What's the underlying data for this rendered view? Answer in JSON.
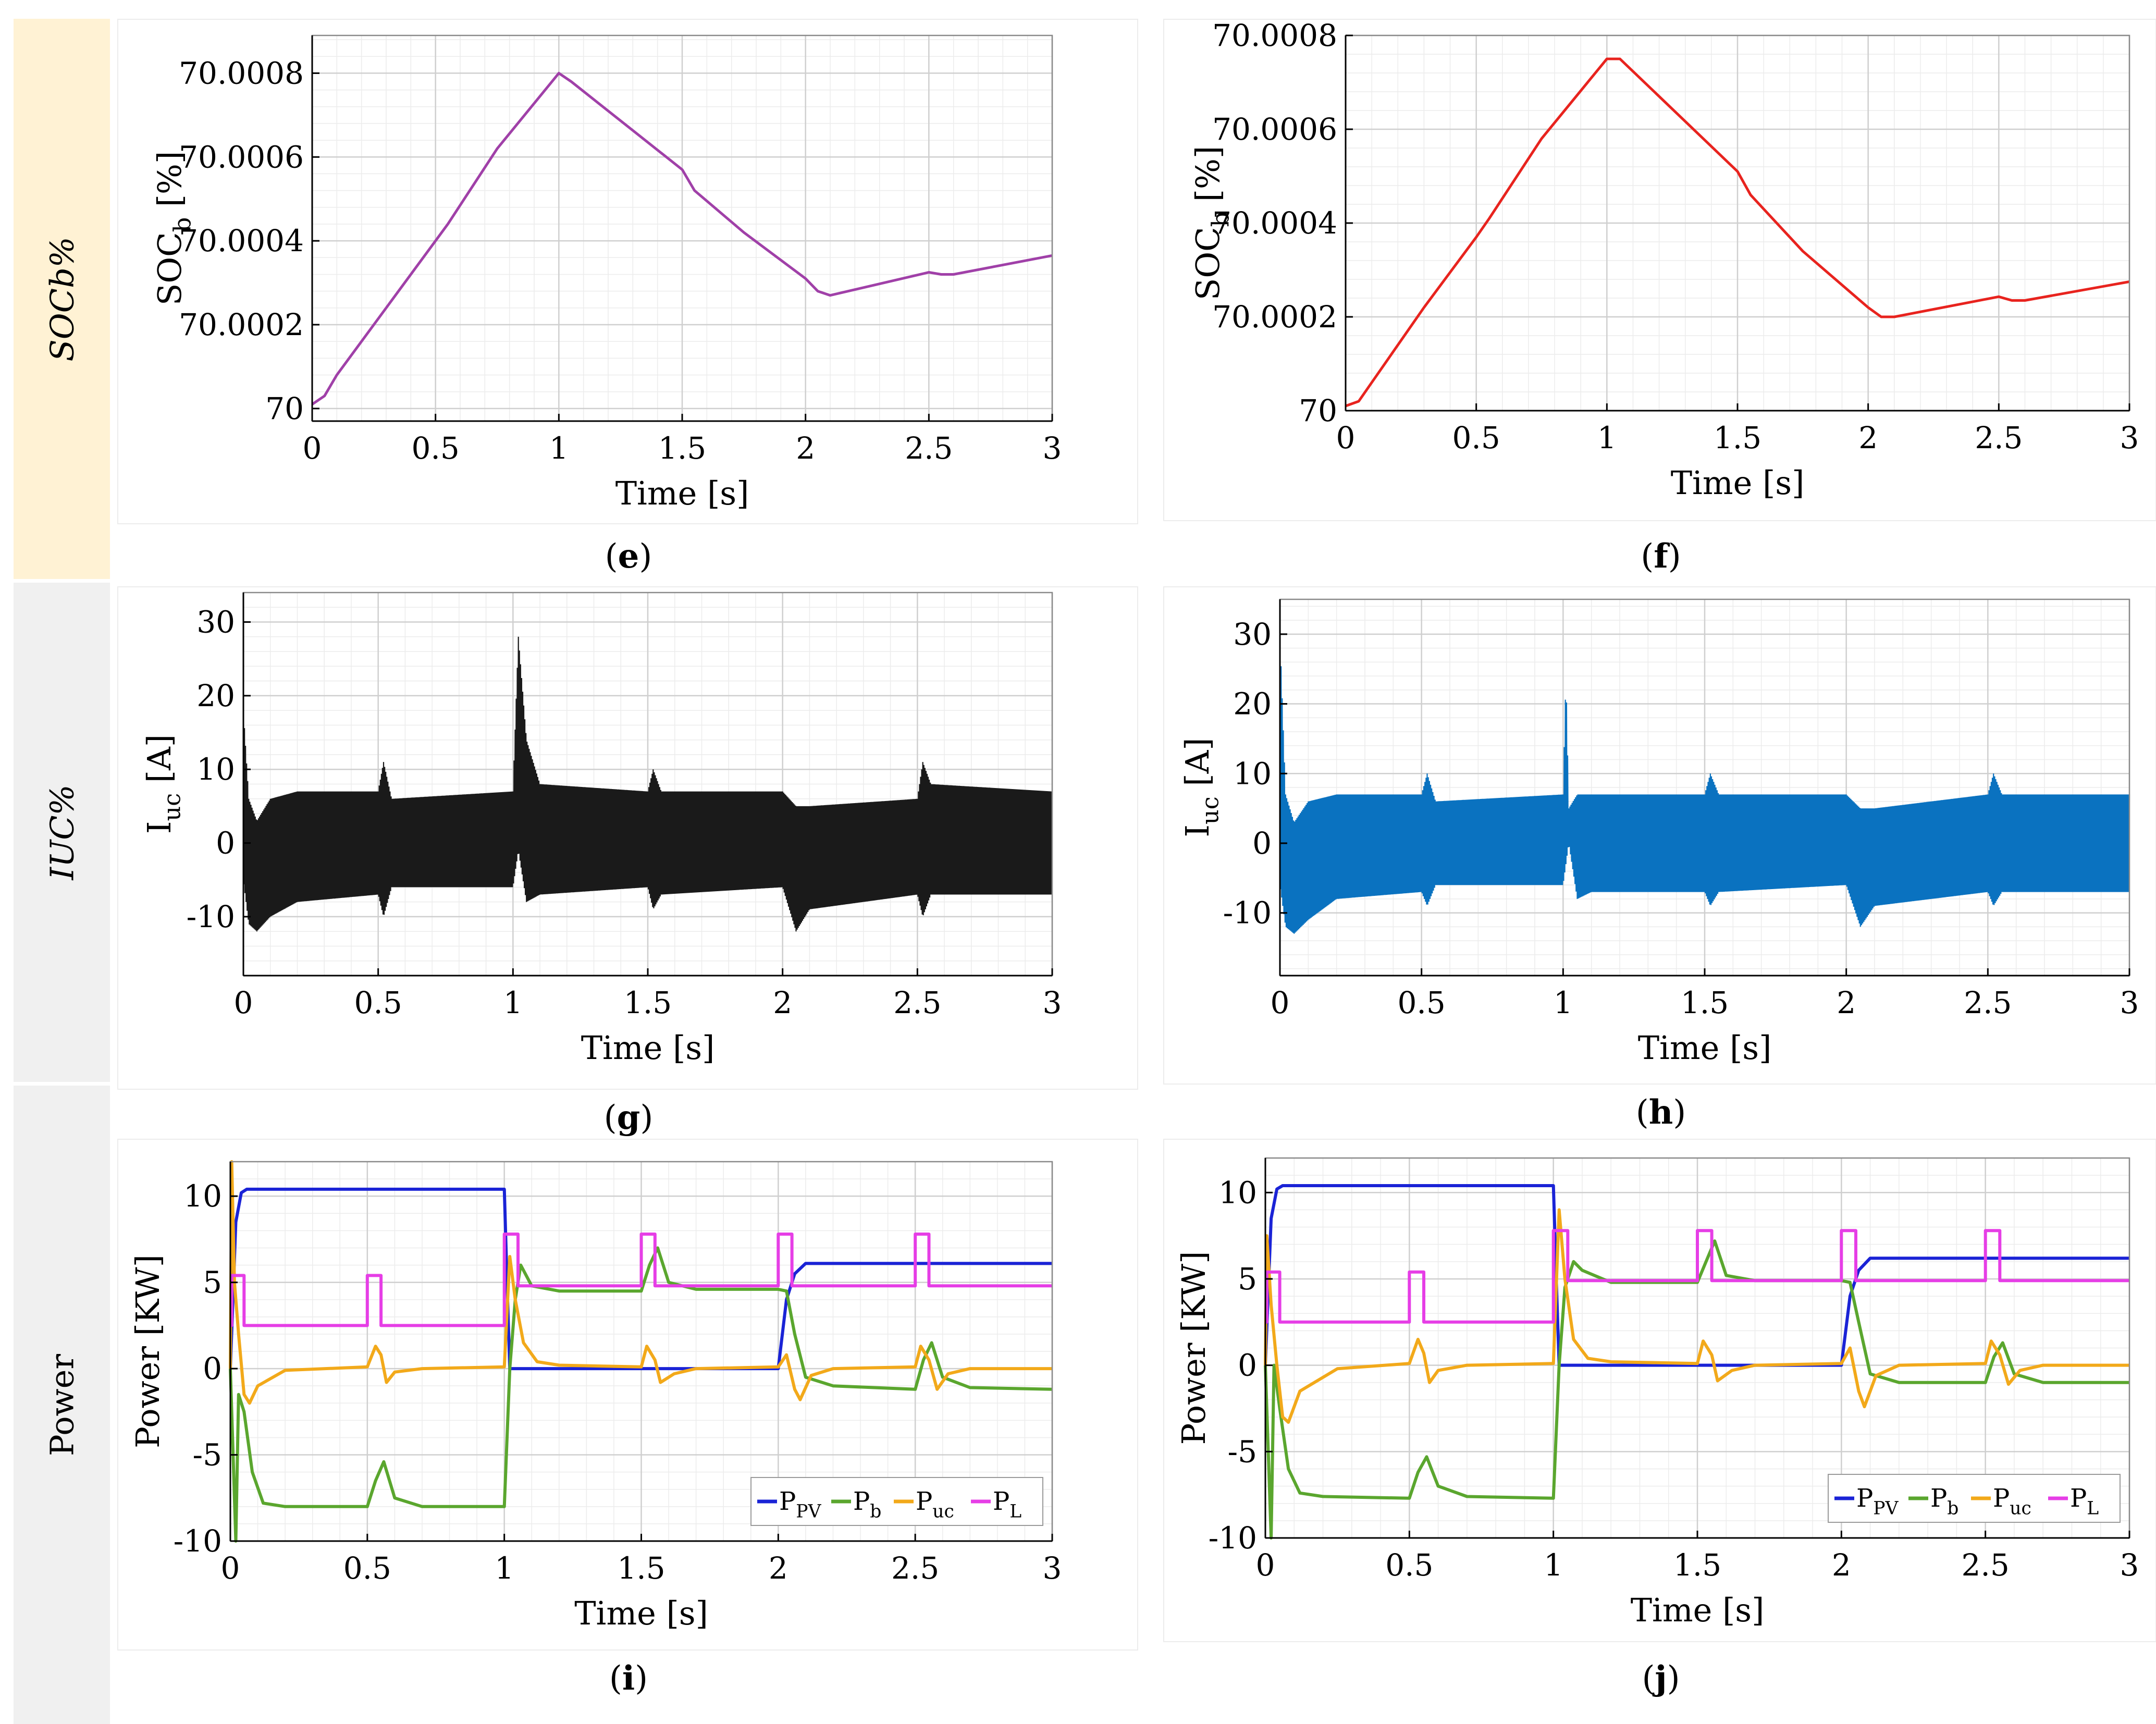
{
  "row_labels": [
    "SOCb%",
    "IUC%",
    "Power"
  ],
  "captions": [
    "e",
    "f",
    "g",
    "h",
    "i",
    "j"
  ],
  "colors": {
    "soc_e": "#a040a8",
    "soc_f": "#e8231e",
    "iuc_g": "#1a1a1a",
    "iuc_h": "#0a72c0",
    "P_PV": "#1a23d6",
    "P_b": "#5aa62e",
    "P_uc": "#f2a91a",
    "P_L": "#e63ee6",
    "row_soc_bg": "#fff2d4",
    "row_other_bg": "#f0f0f0"
  },
  "chart_data": [
    {
      "id": "e",
      "type": "line",
      "xlabel": "Time [s]",
      "ylabel": "SOC_b [%]",
      "xlim": [
        0,
        3
      ],
      "ylim": [
        69.99997,
        70.00089
      ],
      "xticks": [
        0,
        0.5,
        1,
        1.5,
        2,
        2.5,
        3
      ],
      "yticks": [
        70,
        70.0002,
        70.0004,
        70.0006,
        70.0008
      ],
      "yticklabels": [
        "70",
        "70.0002",
        "70.0004",
        "70.0006",
        "70.0008"
      ],
      "grid": true,
      "series": [
        {
          "color_key": "soc_e",
          "x": [
            0,
            0.05,
            0.1,
            0.3,
            0.5,
            0.55,
            0.75,
            1.0,
            1.05,
            1.5,
            1.55,
            1.75,
            2.0,
            2.05,
            2.1,
            2.5,
            2.55,
            2.6,
            3.0
          ],
          "y": [
            70.00001,
            70.00003,
            70.00008,
            70.00024,
            70.0004,
            70.00044,
            70.00062,
            70.0008,
            70.00078,
            70.00057,
            70.00052,
            70.00042,
            70.00031,
            70.00028,
            70.00027,
            70.000325,
            70.00032,
            70.00032,
            70.000365
          ]
        }
      ]
    },
    {
      "id": "f",
      "type": "line",
      "xlabel": "Time [s]",
      "ylabel": "SOC_b [%]",
      "xlim": [
        0,
        3
      ],
      "ylim": [
        70,
        70.0008
      ],
      "xticks": [
        0,
        0.5,
        1,
        1.5,
        2,
        2.5,
        3
      ],
      "yticks": [
        70,
        70.0002,
        70.0004,
        70.0006,
        70.0008
      ],
      "yticklabels": [
        "70",
        "70.0002",
        "70.0004",
        "70.0006",
        "70.0008"
      ],
      "grid": true,
      "series": [
        {
          "color_key": "soc_f",
          "x": [
            0,
            0.05,
            0.1,
            0.3,
            0.5,
            0.55,
            0.75,
            1.0,
            1.05,
            1.5,
            1.55,
            1.75,
            2.0,
            2.05,
            2.1,
            2.5,
            2.55,
            2.6,
            3.0
          ],
          "y": [
            70.00001,
            70.00002,
            70.00006,
            70.00022,
            70.00037,
            70.00041,
            70.00058,
            70.00075,
            70.00075,
            70.00051,
            70.00046,
            70.00034,
            70.00022,
            70.0002,
            70.0002,
            70.000243,
            70.000235,
            70.000235,
            70.000275
          ]
        }
      ]
    },
    {
      "id": "g",
      "type": "line",
      "xlabel": "Time [s]",
      "ylabel": "I_uc [A]",
      "xlim": [
        0,
        3
      ],
      "ylim": [
        -18,
        34
      ],
      "xticks": [
        0,
        0.5,
        1,
        1.5,
        2,
        2.5,
        3
      ],
      "yticks": [
        -10,
        0,
        10,
        20,
        30
      ],
      "grid": true,
      "series": [
        {
          "color_key": "iuc_g",
          "x": [
            0,
            0.02,
            0.05,
            0.1,
            0.2,
            0.5,
            0.52,
            0.55,
            1.0,
            1.02,
            1.05,
            1.1,
            1.5,
            1.52,
            1.55,
            2.0,
            2.05,
            2.1,
            2.5,
            2.52,
            2.55,
            3.0
          ],
          "upper": [
            18,
            6,
            3,
            6,
            7,
            7,
            11,
            6,
            7,
            28,
            14,
            8,
            7,
            10,
            7,
            7,
            5,
            5,
            6,
            11,
            8,
            7
          ],
          "lower": [
            -5,
            -11,
            -12,
            -10,
            -8,
            -7,
            -10,
            -6,
            -6,
            -1,
            -8,
            -7,
            -6,
            -9,
            -7,
            -6,
            -12,
            -9,
            -7,
            -10,
            -7,
            -7
          ]
        }
      ]
    },
    {
      "id": "h",
      "type": "line",
      "xlabel": "Time [s]",
      "ylabel": "I_uc [A]",
      "xlim": [
        0,
        3
      ],
      "ylim": [
        -19,
        35
      ],
      "xticks": [
        0,
        0.5,
        1,
        1.5,
        2,
        2.5,
        3
      ],
      "yticks": [
        -10,
        0,
        10,
        20,
        30
      ],
      "grid": true,
      "series": [
        {
          "color_key": "iuc_h",
          "x": [
            0,
            0.02,
            0.05,
            0.1,
            0.2,
            0.5,
            0.52,
            0.55,
            1.0,
            1.01,
            1.02,
            1.05,
            1.1,
            1.5,
            1.52,
            1.55,
            2.0,
            2.05,
            2.1,
            2.5,
            2.52,
            2.55,
            3.0
          ],
          "upper": [
            30,
            7,
            3,
            6,
            7,
            7,
            10,
            6,
            7,
            24,
            5,
            7,
            7,
            7,
            10,
            7,
            7,
            5,
            5,
            7,
            10,
            7,
            7
          ],
          "lower": [
            -6,
            -12,
            -13,
            -11,
            -8,
            -7,
            -9,
            -6,
            -6,
            -3,
            0,
            -8,
            -7,
            -7,
            -9,
            -7,
            -6,
            -12,
            -9,
            -7,
            -9,
            -7,
            -7
          ]
        }
      ]
    },
    {
      "id": "i",
      "type": "line",
      "xlabel": "Time [s]",
      "ylabel": "Power [KW]",
      "xlim": [
        0,
        3
      ],
      "ylim": [
        -10,
        12
      ],
      "xticks": [
        0,
        0.5,
        1,
        1.5,
        2,
        2.5,
        3
      ],
      "yticks": [
        -10,
        -5,
        0,
        5,
        10
      ],
      "grid": true,
      "legend": "bottom-right",
      "series": [
        {
          "name": "P_PV",
          "color_key": "P_PV",
          "x": [
            0,
            0.02,
            0.04,
            0.06,
            1.0,
            1.01,
            1.02,
            2.0,
            2.03,
            2.06,
            2.1,
            3.0
          ],
          "y": [
            0,
            8.5,
            10.2,
            10.4,
            10.4,
            5,
            0,
            0,
            4,
            5.5,
            6.1,
            6.1
          ]
        },
        {
          "name": "P_b",
          "color_key": "P_b",
          "x": [
            0,
            0.02,
            0.03,
            0.05,
            0.08,
            0.12,
            0.2,
            0.5,
            0.53,
            0.56,
            0.6,
            0.7,
            1.0,
            1.02,
            1.04,
            1.06,
            1.1,
            1.2,
            1.5,
            1.53,
            1.56,
            1.6,
            1.7,
            2.0,
            2.03,
            2.06,
            2.1,
            2.2,
            2.5,
            2.53,
            2.56,
            2.6,
            2.7,
            3.0
          ],
          "y": [
            0,
            -10,
            -1.5,
            -2.5,
            -6,
            -7.8,
            -8,
            -8,
            -6.5,
            -5.4,
            -7.5,
            -8,
            -8,
            0,
            4,
            6,
            4.8,
            4.5,
            4.5,
            6,
            7,
            5,
            4.6,
            4.6,
            4.5,
            2,
            -0.5,
            -1,
            -1.2,
            0.5,
            1.5,
            -0.5,
            -1.1,
            -1.2
          ]
        },
        {
          "name": "P_uc",
          "color_key": "P_uc",
          "x": [
            0,
            0.005,
            0.015,
            0.03,
            0.05,
            0.07,
            0.1,
            0.2,
            0.5,
            0.53,
            0.55,
            0.57,
            0.6,
            0.7,
            1.0,
            1.02,
            1.04,
            1.07,
            1.12,
            1.2,
            1.5,
            1.52,
            1.55,
            1.57,
            1.62,
            1.7,
            2.0,
            2.03,
            2.06,
            2.08,
            2.12,
            2.2,
            2.5,
            2.52,
            2.55,
            2.58,
            2.62,
            2.7,
            3.0
          ],
          "y": [
            0,
            12,
            5,
            2,
            -1.5,
            -2,
            -1,
            -0.1,
            0.1,
            1.3,
            0.8,
            -0.8,
            -0.2,
            0,
            0.1,
            6.5,
            4,
            1.5,
            0.4,
            0.2,
            0.1,
            1.3,
            0.5,
            -0.8,
            -0.3,
            0,
            0.1,
            0.8,
            -1.2,
            -1.8,
            -0.4,
            0,
            0.1,
            1.3,
            0.5,
            -1.2,
            -0.3,
            0,
            0
          ]
        },
        {
          "name": "P_L",
          "color_key": "P_L",
          "x": [
            0,
            0.005,
            0.005,
            0.05,
            0.05,
            0.5,
            0.5,
            0.55,
            0.55,
            1.0,
            1.0,
            1.05,
            1.05,
            1.5,
            1.5,
            1.55,
            1.55,
            2.0,
            2.0,
            2.05,
            2.05,
            2.5,
            2.5,
            2.55,
            2.55,
            3.0
          ],
          "y": [
            2.5,
            2.5,
            5.4,
            5.4,
            2.5,
            2.5,
            5.4,
            5.4,
            2.5,
            2.5,
            7.8,
            7.8,
            4.8,
            4.8,
            7.8,
            7.8,
            4.8,
            4.8,
            7.8,
            7.8,
            4.8,
            4.8,
            7.8,
            7.8,
            4.8,
            4.8
          ]
        }
      ]
    },
    {
      "id": "j",
      "type": "line",
      "xlabel": "Time [s]",
      "ylabel": "Power [KW]",
      "xlim": [
        0,
        3
      ],
      "ylim": [
        -10,
        12
      ],
      "xticks": [
        0,
        0.5,
        1,
        1.5,
        2,
        2.5,
        3
      ],
      "yticks": [
        -10,
        -5,
        0,
        5,
        10
      ],
      "grid": true,
      "legend": "bottom-right",
      "series": [
        {
          "name": "P_PV",
          "color_key": "P_PV",
          "x": [
            0,
            0.02,
            0.04,
            0.06,
            1.0,
            1.01,
            1.02,
            2.0,
            2.03,
            2.06,
            2.1,
            3.0
          ],
          "y": [
            0,
            8.5,
            10.2,
            10.4,
            10.4,
            5,
            0,
            0,
            4,
            5.5,
            6.2,
            6.2
          ]
        },
        {
          "name": "P_b",
          "color_key": "P_b",
          "x": [
            0,
            0.02,
            0.03,
            0.05,
            0.08,
            0.12,
            0.2,
            0.5,
            0.53,
            0.56,
            0.6,
            0.7,
            1.0,
            1.02,
            1.04,
            1.07,
            1.1,
            1.2,
            1.5,
            1.53,
            1.56,
            1.6,
            1.7,
            2.0,
            2.03,
            2.06,
            2.1,
            2.2,
            2.5,
            2.53,
            2.56,
            2.6,
            2.7,
            3.0
          ],
          "y": [
            0,
            -10,
            0,
            -2.5,
            -6,
            -7.4,
            -7.6,
            -7.7,
            -6.2,
            -5.3,
            -7,
            -7.6,
            -7.7,
            0,
            4.5,
            6,
            5.5,
            4.8,
            4.8,
            6,
            7.2,
            5.2,
            4.9,
            4.9,
            4.8,
            2.5,
            -0.5,
            -1,
            -1,
            0.5,
            1.3,
            -0.5,
            -1,
            -1
          ]
        },
        {
          "name": "P_uc",
          "color_key": "P_uc",
          "x": [
            0,
            0.005,
            0.02,
            0.04,
            0.06,
            0.08,
            0.12,
            0.25,
            0.5,
            0.53,
            0.55,
            0.57,
            0.6,
            0.7,
            1.0,
            1.02,
            1.04,
            1.07,
            1.12,
            1.2,
            1.5,
            1.52,
            1.55,
            1.57,
            1.62,
            1.7,
            2.0,
            2.03,
            2.06,
            2.08,
            2.12,
            2.2,
            2.5,
            2.52,
            2.55,
            2.58,
            2.62,
            2.7,
            3.0
          ],
          "y": [
            0,
            7.5,
            3.5,
            0,
            -3,
            -3.3,
            -1.5,
            -0.2,
            0.1,
            1.5,
            0.7,
            -1,
            -0.3,
            0,
            0.1,
            9,
            5,
            1.5,
            0.4,
            0.2,
            0.1,
            1.4,
            0.6,
            -0.9,
            -0.3,
            0,
            0.1,
            1,
            -1.5,
            -2.4,
            -0.6,
            0,
            0.1,
            1.4,
            0.6,
            -1.1,
            -0.3,
            0,
            0
          ]
        },
        {
          "name": "P_L",
          "color_key": "P_L",
          "x": [
            0,
            0.005,
            0.005,
            0.05,
            0.05,
            0.5,
            0.5,
            0.55,
            0.55,
            1.0,
            1.0,
            1.05,
            1.05,
            1.5,
            1.5,
            1.55,
            1.55,
            2.0,
            2.0,
            2.05,
            2.05,
            2.5,
            2.5,
            2.55,
            2.55,
            3.0
          ],
          "y": [
            2.5,
            2.5,
            5.4,
            5.4,
            2.5,
            2.5,
            5.4,
            5.4,
            2.5,
            2.5,
            7.8,
            7.8,
            4.9,
            4.9,
            7.8,
            7.8,
            4.9,
            4.9,
            7.8,
            7.8,
            4.9,
            4.9,
            7.8,
            7.8,
            4.9,
            4.9
          ]
        }
      ]
    }
  ]
}
